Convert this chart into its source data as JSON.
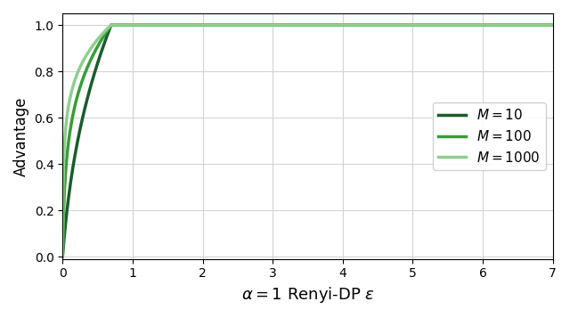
{
  "M_values": [
    10,
    100,
    1000
  ],
  "colors": [
    "#1a5c2a",
    "#3a9c3a",
    "#8fce8f"
  ],
  "linewidths": [
    2.5,
    2.5,
    2.5
  ],
  "xlabel": "$\\alpha = 1$ Renyi-DP $\\varepsilon$",
  "ylabel": "Advantage",
  "xlim": [
    0,
    7
  ],
  "ylim": [
    -0.01,
    1.05
  ],
  "legend_labels": [
    "$M = 10$",
    "$M = 100$",
    "$M = 1000$"
  ],
  "legend_loc": "center right",
  "grid": true,
  "eps_max": 7.0,
  "n_points": 1000
}
